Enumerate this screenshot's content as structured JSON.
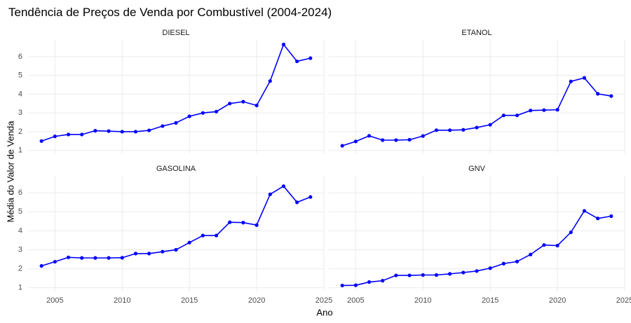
{
  "title": "Tendência de Preços de Venda por Combustível (2004-2024)",
  "x_label": "Ano",
  "y_label": "Média do Valor de Venda",
  "chart_data": [
    {
      "type": "line",
      "title": "DIESEL",
      "color": "#0000ff",
      "x": [
        2004,
        2005,
        2006,
        2007,
        2008,
        2009,
        2010,
        2011,
        2012,
        2013,
        2014,
        2015,
        2016,
        2017,
        2018,
        2019,
        2020,
        2021,
        2022,
        2023,
        2024
      ],
      "values": [
        1.5,
        1.75,
        1.85,
        1.85,
        2.05,
        2.03,
        2.0,
        2.0,
        2.07,
        2.3,
        2.47,
        2.82,
        3.0,
        3.07,
        3.5,
        3.6,
        3.4,
        4.7,
        6.65,
        5.75,
        5.92
      ],
      "xlim": [
        2003,
        2025
      ],
      "ylim": [
        0.84,
        6.93
      ],
      "xticks": [
        2005,
        2010,
        2015,
        2020,
        2025
      ],
      "yticks": [
        1,
        2,
        3,
        4,
        5,
        6
      ],
      "grid": true
    },
    {
      "type": "line",
      "title": "ETANOL",
      "color": "#0000ff",
      "x": [
        2004,
        2005,
        2006,
        2007,
        2008,
        2009,
        2010,
        2011,
        2012,
        2013,
        2014,
        2015,
        2016,
        2017,
        2018,
        2019,
        2020,
        2021,
        2022,
        2023,
        2024
      ],
      "values": [
        1.25,
        1.48,
        1.78,
        1.55,
        1.55,
        1.57,
        1.77,
        2.08,
        2.08,
        2.1,
        2.22,
        2.37,
        2.87,
        2.87,
        3.13,
        3.15,
        3.17,
        4.68,
        4.87,
        4.02,
        3.9
      ],
      "xlim": [
        2003,
        2025
      ],
      "ylim": [
        0.84,
        6.93
      ],
      "xticks": [
        2005,
        2010,
        2015,
        2020,
        2025
      ],
      "yticks": [
        1,
        2,
        3,
        4,
        5,
        6
      ],
      "grid": true
    },
    {
      "type": "line",
      "title": "GASOLINA",
      "color": "#0000ff",
      "x": [
        2004,
        2005,
        2006,
        2007,
        2008,
        2009,
        2010,
        2011,
        2012,
        2013,
        2014,
        2015,
        2016,
        2017,
        2018,
        2019,
        2020,
        2021,
        2022,
        2023,
        2024
      ],
      "values": [
        2.15,
        2.37,
        2.6,
        2.57,
        2.57,
        2.57,
        2.58,
        2.8,
        2.8,
        2.9,
        3.0,
        3.38,
        3.75,
        3.75,
        4.45,
        4.43,
        4.3,
        5.92,
        6.35,
        5.5,
        5.78
      ],
      "xlim": [
        2003,
        2025
      ],
      "ylim": [
        0.84,
        6.93
      ],
      "xticks": [
        2005,
        2010,
        2015,
        2020,
        2025
      ],
      "yticks": [
        1,
        2,
        3,
        4,
        5,
        6
      ],
      "grid": true
    },
    {
      "type": "line",
      "title": "GNV",
      "color": "#0000ff",
      "x": [
        2004,
        2005,
        2006,
        2007,
        2008,
        2009,
        2010,
        2011,
        2012,
        2013,
        2014,
        2015,
        2016,
        2017,
        2018,
        2019,
        2020,
        2021,
        2022,
        2023,
        2024
      ],
      "values": [
        1.12,
        1.13,
        1.3,
        1.37,
        1.65,
        1.65,
        1.67,
        1.67,
        1.73,
        1.8,
        1.88,
        2.03,
        2.27,
        2.38,
        2.75,
        3.25,
        3.22,
        3.92,
        5.05,
        4.65,
        4.77
      ],
      "xlim": [
        2003,
        2025
      ],
      "ylim": [
        0.84,
        6.93
      ],
      "xticks": [
        2005,
        2010,
        2015,
        2020,
        2025
      ],
      "yticks": [
        1,
        2,
        3,
        4,
        5,
        6
      ],
      "grid": true
    }
  ]
}
